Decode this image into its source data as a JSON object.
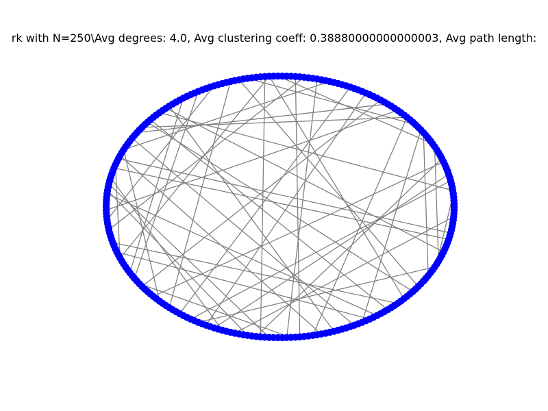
{
  "figure": {
    "title": "rk with N=250\\Avg degrees: 4.0, Avg clustering coeff: 0.38880000000000003, Avg path length:"
  },
  "graph": {
    "node_count": 250,
    "layout": "circular",
    "node_color": "#0000ff",
    "edge_color": "#808080",
    "background": "#ffffff",
    "ring_step": 1,
    "long_edges": [
      [
        19,
        233
      ],
      [
        4,
        232
      ],
      [
        25,
        207
      ],
      [
        46,
        163
      ],
      [
        33,
        126
      ],
      [
        236,
        91
      ],
      [
        231,
        168
      ],
      [
        222,
        97
      ],
      [
        10,
        172
      ],
      [
        205,
        103
      ],
      [
        5,
        93
      ],
      [
        8,
        166
      ],
      [
        14,
        155
      ],
      [
        15,
        182
      ],
      [
        27,
        70
      ],
      [
        185,
        118
      ],
      [
        197,
        109
      ],
      [
        146,
        86
      ],
      [
        151,
        38
      ],
      [
        72,
        224
      ],
      [
        214,
        96
      ],
      [
        174,
        116
      ],
      [
        107,
        51
      ],
      [
        132,
        57
      ],
      [
        141,
        112
      ],
      [
        59,
        192
      ],
      [
        65,
        141
      ],
      [
        78,
        129
      ],
      [
        82,
        148
      ],
      [
        90,
        200
      ],
      [
        121,
        211
      ],
      [
        150,
        190
      ],
      [
        157,
        107
      ],
      [
        177,
        247
      ],
      [
        189,
        54
      ],
      [
        195,
        30
      ],
      [
        209,
        139
      ],
      [
        219,
        65
      ],
      [
        228,
        24
      ],
      [
        242,
        110
      ],
      [
        101,
        36
      ],
      [
        113,
        240
      ],
      [
        136,
        217
      ],
      [
        160,
        74
      ],
      [
        170,
        42
      ],
      [
        180,
        120
      ],
      [
        63,
        20
      ],
      [
        99,
        30
      ],
      [
        66,
        183
      ]
    ]
  }
}
